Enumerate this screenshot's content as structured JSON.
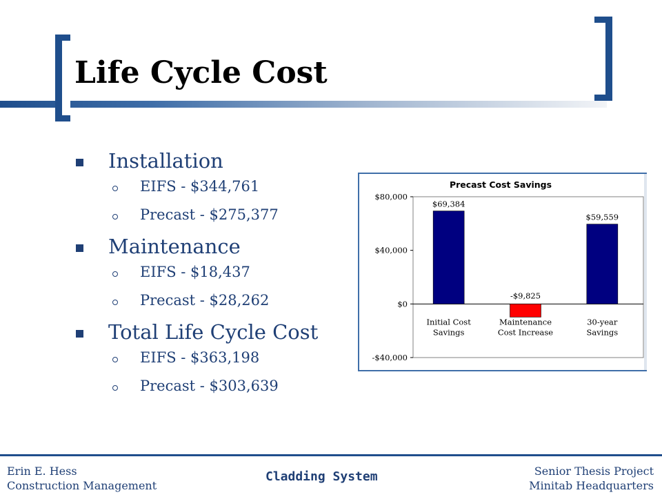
{
  "title": "Life Cycle Cost",
  "bullets": [
    {
      "label": "Installation",
      "subs": [
        "EIFS - $344,761",
        "Precast - $275,377"
      ]
    },
    {
      "label": "Maintenance",
      "subs": [
        "EIFS - $18,437",
        "Precast - $28,262"
      ]
    },
    {
      "label": "Total Life Cycle Cost",
      "subs": [
        "EIFS - $363,198",
        "Precast - $303,639"
      ]
    }
  ],
  "chart_data": {
    "type": "bar",
    "title": "Precast Cost Savings",
    "categories": [
      [
        "Initial Cost",
        "Savings"
      ],
      [
        "Maintenance",
        "Cost Increase"
      ],
      [
        "30-year",
        "Savings"
      ]
    ],
    "values": [
      69384,
      -9825,
      59559
    ],
    "data_labels": [
      "$69,384",
      "-$9,825",
      "$59,559"
    ],
    "colors": [
      "#000080",
      "#ff0000",
      "#000080"
    ],
    "ylim": [
      -40000,
      80000
    ],
    "yticks": [
      80000,
      40000,
      0,
      -40000
    ],
    "ytick_labels": [
      "$80,000",
      "$40,000",
      "$0",
      "-$40,000"
    ],
    "xlabel": "",
    "ylabel": "",
    "grid": false,
    "legend": false
  },
  "footer": {
    "left_line1": "Erin E. Hess",
    "left_line2": "Construction Management",
    "center": "Cladding System",
    "right_line1": "Senior Thesis Project",
    "right_line2": "Minitab Headquarters"
  }
}
